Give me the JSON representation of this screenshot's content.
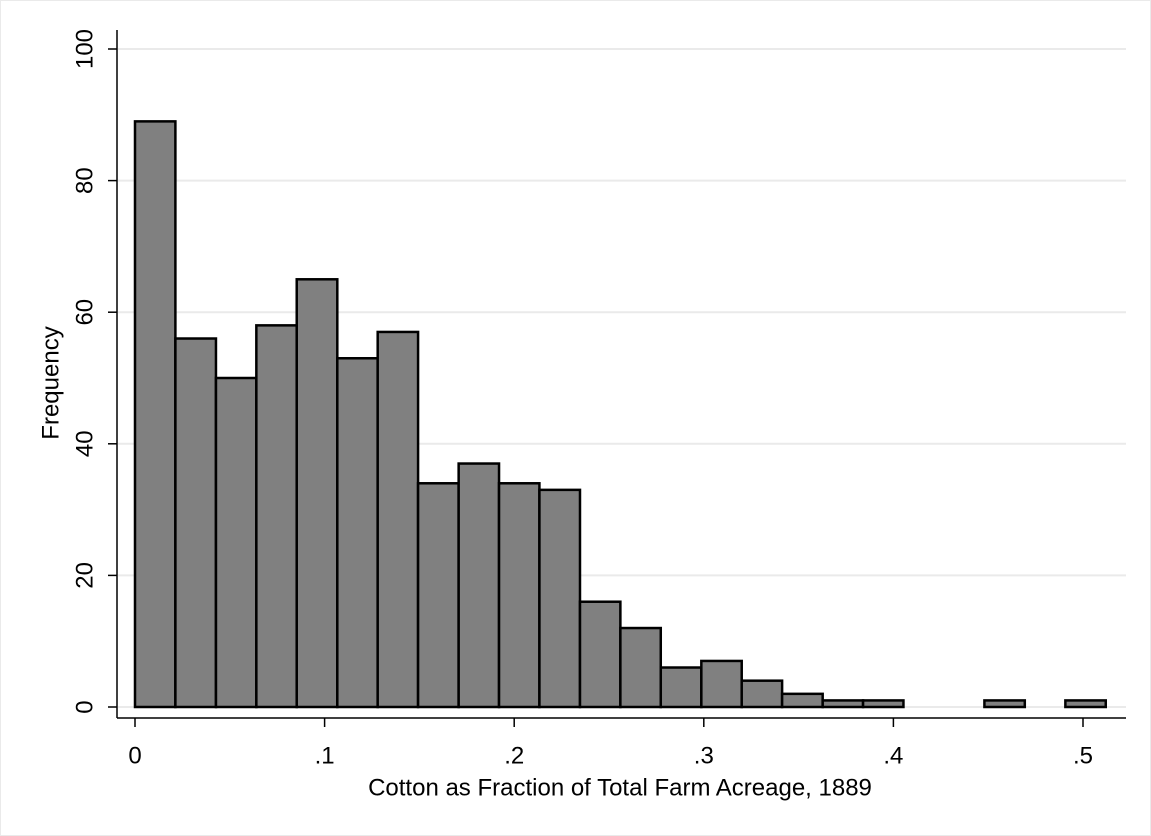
{
  "chart_data": {
    "type": "histogram",
    "x_label": "Cotton as Fraction of Total Farm Acreage, 1889",
    "y_label": "Frequency",
    "bins": [
      0,
      0.0213,
      0.0427,
      0.064,
      0.0853,
      0.1067,
      0.128,
      0.1493,
      0.1707,
      0.192,
      0.2133,
      0.2347,
      0.256,
      0.2773,
      0.2987,
      0.32,
      0.3413,
      0.3627,
      0.384,
      0.4053,
      0.4267,
      0.448,
      0.4693,
      0.4907,
      0.512
    ],
    "counts": [
      89,
      56,
      50,
      58,
      65,
      53,
      57,
      34,
      37,
      34,
      33,
      16,
      12,
      6,
      7,
      4,
      2,
      1,
      1,
      0,
      0,
      1,
      0,
      1
    ],
    "color": "#808080",
    "xlim": [
      0,
      0.5
    ],
    "xticks": [
      0,
      {
        "value": 0.1,
        "label": ".1"
      },
      {
        "value": 0.2,
        "label": ".2"
      },
      {
        "value": 0.3,
        "label": ".3"
      },
      {
        "value": 0.4,
        "label": ".4"
      },
      {
        "value": 0.5,
        "label": ".5"
      }
    ],
    "ylim": [
      0,
      100
    ],
    "yticks": [
      0,
      20,
      40,
      60,
      80,
      100
    ],
    "grid": true
  }
}
